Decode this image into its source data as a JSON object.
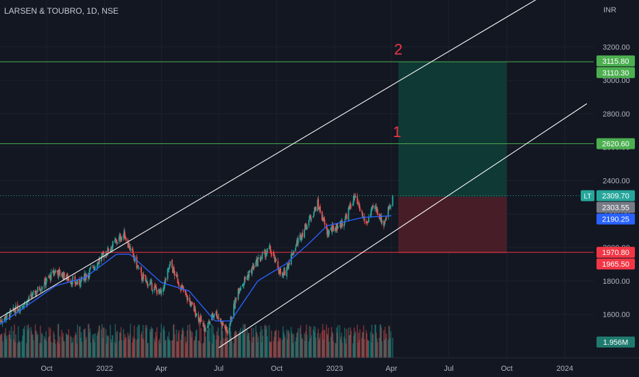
{
  "chart_title": "LARSEN & TOUBRO, 1D, NSE",
  "currency": "INR",
  "symbol_badge": "LT",
  "colors": {
    "background": "#131722",
    "bull": "#26a69a",
    "bear": "#ef5350",
    "ma": "#2962ff",
    "channel": "#ffffff",
    "target_line": "#4caf50",
    "stop_line": "#f23645",
    "target_zone": "#0f3b36",
    "stop_zone": "#4a1f28",
    "annotation": "#f23645"
  },
  "chart_data": {
    "type": "candlestick",
    "ylim": [
      1340,
      3480
    ],
    "y_ticks": [
      1600,
      1800,
      2000,
      2200,
      2400,
      2600,
      2800,
      3000,
      3200
    ],
    "y_tick_labels": [
      "1600.00",
      "1800.00",
      "2000.00",
      "2200.00",
      "2400.00",
      "2600.00",
      "2800.00",
      "3000.00",
      "3200.00"
    ],
    "x_ticks": [
      {
        "label": "Oct",
        "date": "2021-10-01"
      },
      {
        "label": "2022",
        "date": "2022-01-01"
      },
      {
        "label": "Apr",
        "date": "2022-04-01"
      },
      {
        "label": "Jul",
        "date": "2022-07-01"
      },
      {
        "label": "Oct",
        "date": "2022-10-01"
      },
      {
        "label": "2023",
        "date": "2023-01-01"
      },
      {
        "label": "Apr",
        "date": "2023-04-01"
      },
      {
        "label": "Jul",
        "date": "2023-07-01"
      },
      {
        "label": "Oct",
        "date": "2023-10-01"
      },
      {
        "label": "2024",
        "date": "2024-01-01"
      }
    ],
    "xlim": [
      "2021-07-19",
      "2024-02-16"
    ],
    "price_path": [
      {
        "date": "2021-07-19",
        "close": 1560
      },
      {
        "date": "2021-09-01",
        "close": 1680
      },
      {
        "date": "2021-10-15",
        "close": 1860
      },
      {
        "date": "2021-11-20",
        "close": 1780
      },
      {
        "date": "2022-01-15",
        "close": 2020
      },
      {
        "date": "2022-02-01",
        "close": 2080
      },
      {
        "date": "2022-03-01",
        "close": 1820
      },
      {
        "date": "2022-04-01",
        "close": 1720
      },
      {
        "date": "2022-04-15",
        "close": 1900
      },
      {
        "date": "2022-05-01",
        "close": 1770
      },
      {
        "date": "2022-06-10",
        "close": 1510
      },
      {
        "date": "2022-06-25",
        "close": 1620
      },
      {
        "date": "2022-07-15",
        "close": 1490
      },
      {
        "date": "2022-08-01",
        "close": 1750
      },
      {
        "date": "2022-09-01",
        "close": 1920
      },
      {
        "date": "2022-09-20",
        "close": 1990
      },
      {
        "date": "2022-10-10",
        "close": 1820
      },
      {
        "date": "2022-11-01",
        "close": 2020
      },
      {
        "date": "2022-12-05",
        "close": 2260
      },
      {
        "date": "2022-12-20",
        "close": 2090
      },
      {
        "date": "2023-01-15",
        "close": 2150
      },
      {
        "date": "2023-02-01",
        "close": 2300
      },
      {
        "date": "2023-02-20",
        "close": 2140
      },
      {
        "date": "2023-03-05",
        "close": 2250
      },
      {
        "date": "2023-03-20",
        "close": 2140
      },
      {
        "date": "2023-04-03",
        "close": 2309.7
      }
    ],
    "moving_average": [
      {
        "date": "2021-07-19",
        "value": 1540
      },
      {
        "date": "2021-10-15",
        "value": 1770
      },
      {
        "date": "2021-12-01",
        "value": 1820
      },
      {
        "date": "2022-01-20",
        "value": 1960
      },
      {
        "date": "2022-02-10",
        "value": 1960
      },
      {
        "date": "2022-04-01",
        "value": 1790
      },
      {
        "date": "2022-05-15",
        "value": 1740
      },
      {
        "date": "2022-06-25",
        "value": 1560
      },
      {
        "date": "2022-07-20",
        "value": 1560
      },
      {
        "date": "2022-09-01",
        "value": 1800
      },
      {
        "date": "2022-10-15",
        "value": 1900
      },
      {
        "date": "2022-11-20",
        "value": 2020
      },
      {
        "date": "2022-12-20",
        "value": 2130
      },
      {
        "date": "2023-02-15",
        "value": 2180
      },
      {
        "date": "2023-04-03",
        "value": 2190.25
      }
    ],
    "volume_label": "1.956M",
    "channel_lines": [
      {
        "from": {
          "date": "2021-07-19",
          "price": 1580
        },
        "to": {
          "date": "2023-11-20",
          "price": 3490
        }
      },
      {
        "from": {
          "date": "2022-07-01",
          "price": 1400
        },
        "to": {
          "date": "2024-02-05",
          "price": 2860
        }
      }
    ],
    "horizontal_levels": [
      {
        "price": 3110.3,
        "label": "3110.30",
        "kind": "target"
      },
      {
        "price": 2620.6,
        "label": "2620.60",
        "kind": "target"
      },
      {
        "price": 1970.8,
        "label": "1970.80",
        "kind": "stop"
      }
    ],
    "position_box": {
      "from_date": "2023-04-12",
      "to_date": "2023-10-01",
      "entry": 2303.55,
      "target": 3110.3,
      "stop": 1965.5
    },
    "annotations": [
      {
        "text": "1",
        "date": "2023-04-10",
        "price": 2660
      },
      {
        "text": "2",
        "date": "2023-04-12",
        "price": 3155
      }
    ],
    "price_labels": [
      {
        "text": "3115.80",
        "price": 3115.8,
        "color": "#4caf50"
      },
      {
        "text": "3110.30",
        "price": 3110.3,
        "color": "#4caf50"
      },
      {
        "text": "2620.60",
        "price": 2620.6,
        "color": "#4caf50"
      },
      {
        "text": "2309.70",
        "price": 2309.7,
        "color": "#26a69a"
      },
      {
        "text": "2303.55",
        "price": 2303.55,
        "color": "#787b86"
      },
      {
        "text": "2190.25",
        "price": 2190.25,
        "color": "#2962ff"
      },
      {
        "text": "1970.80",
        "price": 1970.8,
        "color": "#f23645"
      },
      {
        "text": "1965.50",
        "price": 1965.5,
        "color": "#f23645"
      }
    ]
  }
}
